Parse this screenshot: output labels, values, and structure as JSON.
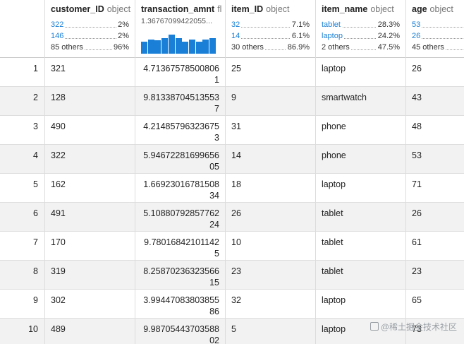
{
  "columns": {
    "customer_ID": {
      "name": "customer_ID",
      "type": "object",
      "stats": [
        {
          "key": "322",
          "value": "2%"
        },
        {
          "key": "146",
          "value": "2%"
        },
        {
          "key": "85 others",
          "value": "96%"
        }
      ]
    },
    "transaction_amnt": {
      "name": "transaction_amnt",
      "type": "fl",
      "range_text": "1.36767099422055..."
    },
    "item_ID": {
      "name": "item_ID",
      "type": "object",
      "stats": [
        {
          "key": "32",
          "value": "7.1%"
        },
        {
          "key": "14",
          "value": "6.1%"
        },
        {
          "key": "30 others",
          "value": "86.9%"
        }
      ]
    },
    "item_name": {
      "name": "item_name",
      "type": "object",
      "stats": [
        {
          "key": "tablet",
          "value": "28.3%"
        },
        {
          "key": "laptop",
          "value": "24.2%"
        },
        {
          "key": "2 others",
          "value": "47.5%"
        }
      ]
    },
    "age": {
      "name": "age",
      "type": "object",
      "stats": [
        {
          "key": "53",
          "value": ""
        },
        {
          "key": "26",
          "value": ""
        },
        {
          "key": "45 others",
          "value": ""
        }
      ]
    }
  },
  "histogram": [
    0.62,
    0.72,
    0.68,
    0.78,
    0.98,
    0.8,
    0.62,
    0.7,
    0.62,
    0.7,
    0.78
  ],
  "rows": [
    {
      "idx": "1",
      "customer_ID": "321",
      "transaction_amnt": "4.713675785008061",
      "item_ID": "25",
      "item_name": "laptop",
      "age": "26"
    },
    {
      "idx": "2",
      "customer_ID": "128",
      "transaction_amnt": "9.813387045135537",
      "item_ID": "9",
      "item_name": "smartwatch",
      "age": "43"
    },
    {
      "idx": "3",
      "customer_ID": "490",
      "transaction_amnt": "4.214857963236753",
      "item_ID": "31",
      "item_name": "phone",
      "age": "48"
    },
    {
      "idx": "4",
      "customer_ID": "322",
      "transaction_amnt": "5.9467228169965605",
      "item_ID": "14",
      "item_name": "phone",
      "age": "53"
    },
    {
      "idx": "5",
      "customer_ID": "162",
      "transaction_amnt": "1.6692301678150834",
      "item_ID": "18",
      "item_name": "laptop",
      "age": "71"
    },
    {
      "idx": "6",
      "customer_ID": "491",
      "transaction_amnt": "5.1088079285776224",
      "item_ID": "26",
      "item_name": "tablet",
      "age": "26"
    },
    {
      "idx": "7",
      "customer_ID": "170",
      "transaction_amnt": "9.780168421011425",
      "item_ID": "10",
      "item_name": "tablet",
      "age": "61"
    },
    {
      "idx": "8",
      "customer_ID": "319",
      "transaction_amnt": "8.2587023632356615",
      "item_ID": "23",
      "item_name": "tablet",
      "age": "23"
    },
    {
      "idx": "9",
      "customer_ID": "302",
      "transaction_amnt": "3.9944708380385586",
      "item_ID": "32",
      "item_name": "laptop",
      "age": "65"
    },
    {
      "idx": "10",
      "customer_ID": "489",
      "transaction_amnt": "9.9870544370358802",
      "item_ID": "5",
      "item_name": "laptop",
      "age": "73"
    }
  ],
  "watermark": "@稀土掘金技术社区",
  "colors": {
    "link": "#1a7fd6",
    "alt_row": "#f2f2f2"
  }
}
